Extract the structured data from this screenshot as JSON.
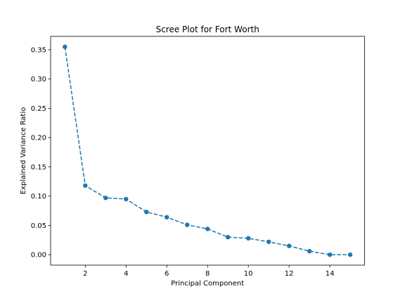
{
  "chart_data": {
    "type": "line",
    "title": "Scree Plot for Fort Worth",
    "xlabel": "Principal Component",
    "ylabel": "Explained Variance Ratio",
    "x": [
      1,
      2,
      3,
      4,
      5,
      6,
      7,
      8,
      9,
      10,
      11,
      12,
      13,
      14,
      15
    ],
    "series": [
      {
        "values": [
          0.355,
          0.118,
          0.097,
          0.095,
          0.073,
          0.064,
          0.051,
          0.044,
          0.03,
          0.028,
          0.022,
          0.015,
          0.006,
          0.0,
          0.0
        ],
        "color": "#1f77b4",
        "line_style": "dashed",
        "marker": "circle"
      }
    ],
    "xlim": [
      0.3,
      15.7
    ],
    "ylim": [
      -0.0178,
      0.3728
    ],
    "xticks": [
      2,
      4,
      6,
      8,
      10,
      12,
      14
    ],
    "xtick_labels": [
      "2",
      "4",
      "6",
      "8",
      "10",
      "12",
      "14"
    ],
    "yticks": [
      0.0,
      0.05,
      0.1,
      0.15,
      0.2,
      0.25,
      0.3,
      0.35
    ],
    "ytick_labels": [
      "0.00",
      "0.05",
      "0.10",
      "0.15",
      "0.20",
      "0.25",
      "0.30",
      "0.35"
    ],
    "grid": false,
    "legend": "none"
  }
}
